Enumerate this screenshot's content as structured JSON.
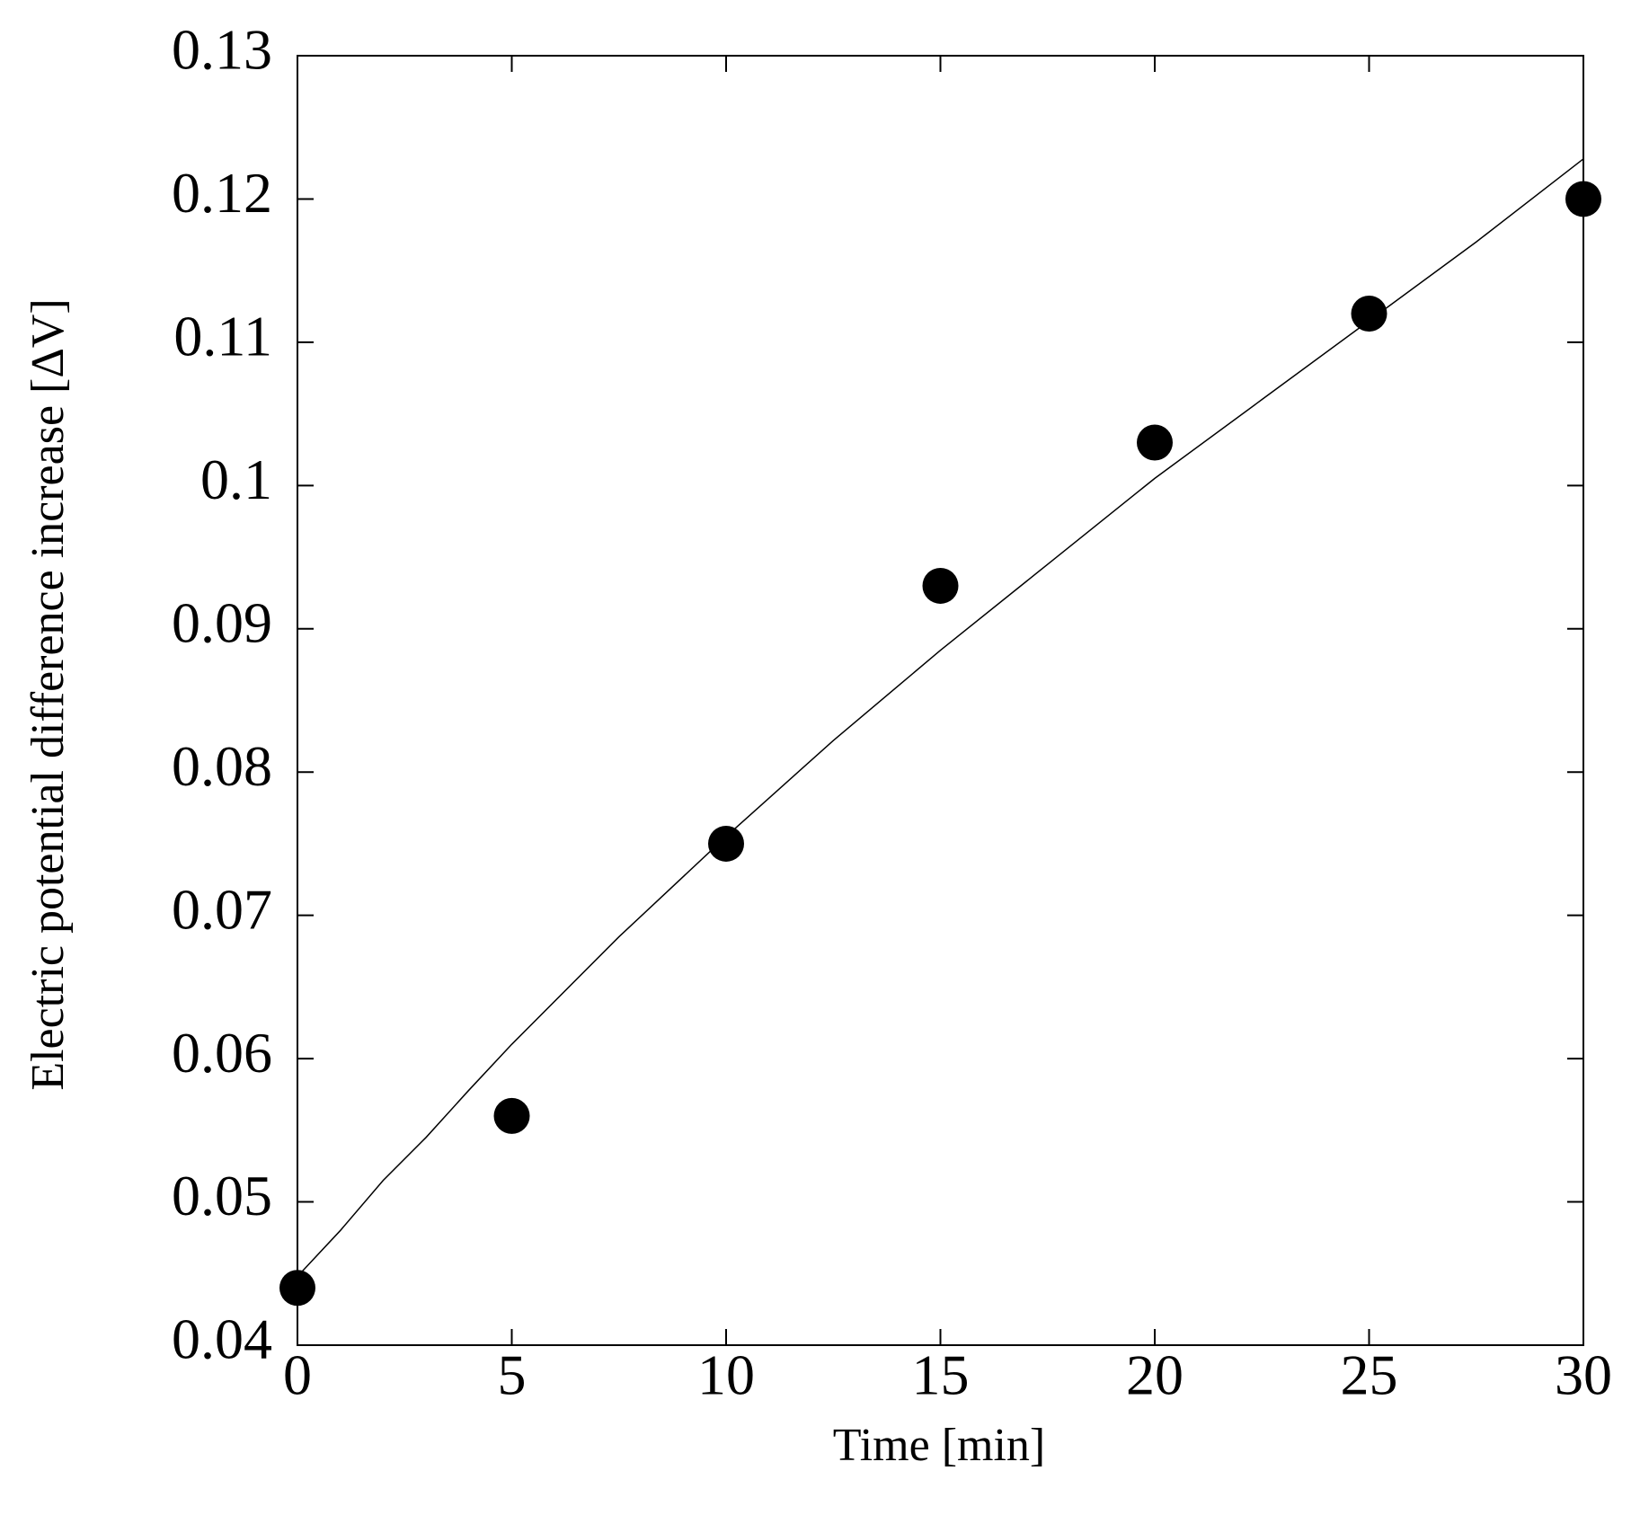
{
  "chart_data": {
    "type": "scatter",
    "x_label": "Time [min]",
    "y_label": "Electric potential difference increase [ΔV]",
    "xlim": [
      0,
      30
    ],
    "xticks": [
      0,
      5,
      10,
      15,
      20,
      25,
      30
    ],
    "ylim": [
      0.04,
      0.13
    ],
    "yticks": [
      0.04,
      0.05,
      0.06,
      0.07,
      0.08,
      0.09,
      0.1,
      0.11,
      0.12,
      0.13
    ],
    "series": [
      {
        "type": "scatter",
        "color": "#000000",
        "x": [
          0,
          5,
          10,
          15,
          20,
          25,
          30
        ],
        "values": [
          0.044,
          0.056,
          0.075,
          0.093,
          0.103,
          0.112,
          0.12
        ]
      },
      {
        "type": "line",
        "color": "#000000",
        "x": [
          0,
          1,
          2,
          3,
          4,
          5,
          7.5,
          10,
          12.5,
          15,
          17.5,
          20,
          22.5,
          25,
          27.5,
          30
        ],
        "values": [
          0.0448,
          0.048,
          0.0515,
          0.0545,
          0.0578,
          0.061,
          0.0685,
          0.0755,
          0.0822,
          0.0885,
          0.0945,
          0.1005,
          0.106,
          0.1115,
          0.117,
          0.1228
        ]
      }
    ]
  }
}
